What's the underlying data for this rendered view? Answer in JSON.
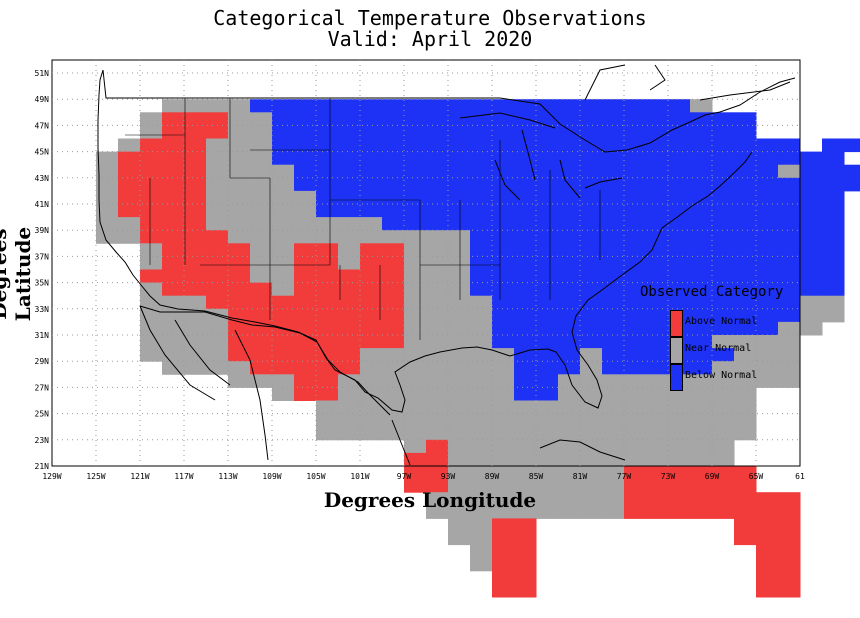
{
  "header": {
    "title": "Categorical Temperature Observations",
    "subtitle": "Valid: April 2020"
  },
  "axes": {
    "xlabel": "Degrees Longitude",
    "ylabel": "Degrees Latitude",
    "x_ticks": [
      "129W",
      "125W",
      "121W",
      "117W",
      "113W",
      "109W",
      "105W",
      "101W",
      "97W",
      "93W",
      "89W",
      "85W",
      "81W",
      "77W",
      "73W",
      "69W",
      "65W",
      "61"
    ],
    "y_ticks": [
      "21N",
      "23N",
      "25N",
      "27N",
      "29N",
      "31N",
      "33N",
      "35N",
      "37N",
      "39N",
      "41N",
      "43N",
      "45N",
      "47N",
      "49N",
      "51N"
    ],
    "x_range_deg": [
      -129,
      -61
    ],
    "y_range_deg": [
      21,
      52
    ]
  },
  "legend": {
    "title": "Observed Category",
    "items": [
      {
        "label": "Above Normal",
        "color": "#f23c3c"
      },
      {
        "label": "Near Normal",
        "color": "#a6a6a6"
      },
      {
        "label": "Below Normal",
        "color": "#1e32f5"
      }
    ]
  },
  "colors": {
    "above": "#f23c3c",
    "near": "#a6a6a6",
    "below": "#1e32f5",
    "grid": "#9a9a9a",
    "coast": "#000000"
  },
  "chart_data": {
    "type": "heatmap",
    "cell_size_deg": 2,
    "category_codes": {
      "A": "Above Normal",
      "N": "Near Normal",
      "B": "Below Normal"
    },
    "grid_origin": {
      "lon_west": -125,
      "lat_north": 49
    },
    "rows": [
      "...NNNNBBBBBBBBBBBBBBBBBBBBN.......",
      "..NAAANNBBBBBBBBBBBBBBBBBBBBBB.....",
      "..NAAANNBBBBBBBBBBBBBBBBBBBBBB.....",
      ".NAAANNNBBBBBBBBBBBBBBBBBBBBBBBB.BB",
      "NAAAANNNBBBBBBBBBBBBBBBBBBBBBBBBBB.",
      "NAAAANNNNBBBBBBBBBBBBBBBBBBBBBBNBBB",
      "NAAAANNNNBBBBBBBBBBBBBBBBBBBBBBBBBB",
      "NAAAANNNNNBBBBBBBBBBBBBBBBBBBBBBBB.",
      "NAAAANNNNNBBBBBBBBBBBBBBBBBBBBBBBB.",
      "NNAAANNNNNNNNBBBBBBBBBBBBBBBBBBBBB.",
      "NNAAAANNNNNNNNNNNBBBBBBBBBBBBBBBBB.",
      "..NAAAANNAANAANNNBBBBBBBBBBBBBBBBB.",
      "..NAAAANNAANAANNNBBBBBBBBBBBBBBBBB.",
      "..AAAAANNAAAAANNNBBBBBBBBBBBBBBBBB.",
      "..NAAAAANAAAAANNNBBBBBBBBBBBBBBBBB.",
      "..NNNAAAAAAAAANNNNBBBBBBBBBBBBBBNN.",
      "..NNNNAAAAAAAANNNNBBBBBBBBBBBBBBNN.",
      "..NNNNAAAAAAAANNNNBBBBBBBBBBBBBNN..",
      "..NNNNAAAAAAAANNNNBBBBBBBBBBNNNN...",
      "..NNNNAAAAAANNNNNNNBBBNBBBBBBNNN...",
      "...NNNNAAAAANNNNNNNBBBNBBBBBNNNN...",
      "......NNNAANNNNNNNNBBNNNNNNNNNNN...",
      "........NAANNNNNNNNBBNNNNNNNNN.....",
      "..........NNNNNNNNNNNNNNNNNNNN.....",
      "..........NNNNNNNNNNNNNNNNNNNN.....",
      "..........NNNNNNNNNNNNNNNNNNNN.....",
      "..............NANNNNNNNNNNNNN......",
      "..............AANNNNNNNNNNNNN......",
      "..............AANNNNNNNNAAAAAA.....",
      "..............AANNNNNNNNAAAAAA.....",
      "...............NNNNNNNNNAAAAAAAA...",
      "...............NNNNNNNNNAAAAAAAA...",
      "................NNAA.........AAA...",
      "................NNAA.........AAA...",
      ".................NAA..........AA...",
      ".................NAA..........AA...",
      "..................AA..........AA...",
      "..................AA..........AA..."
    ]
  }
}
